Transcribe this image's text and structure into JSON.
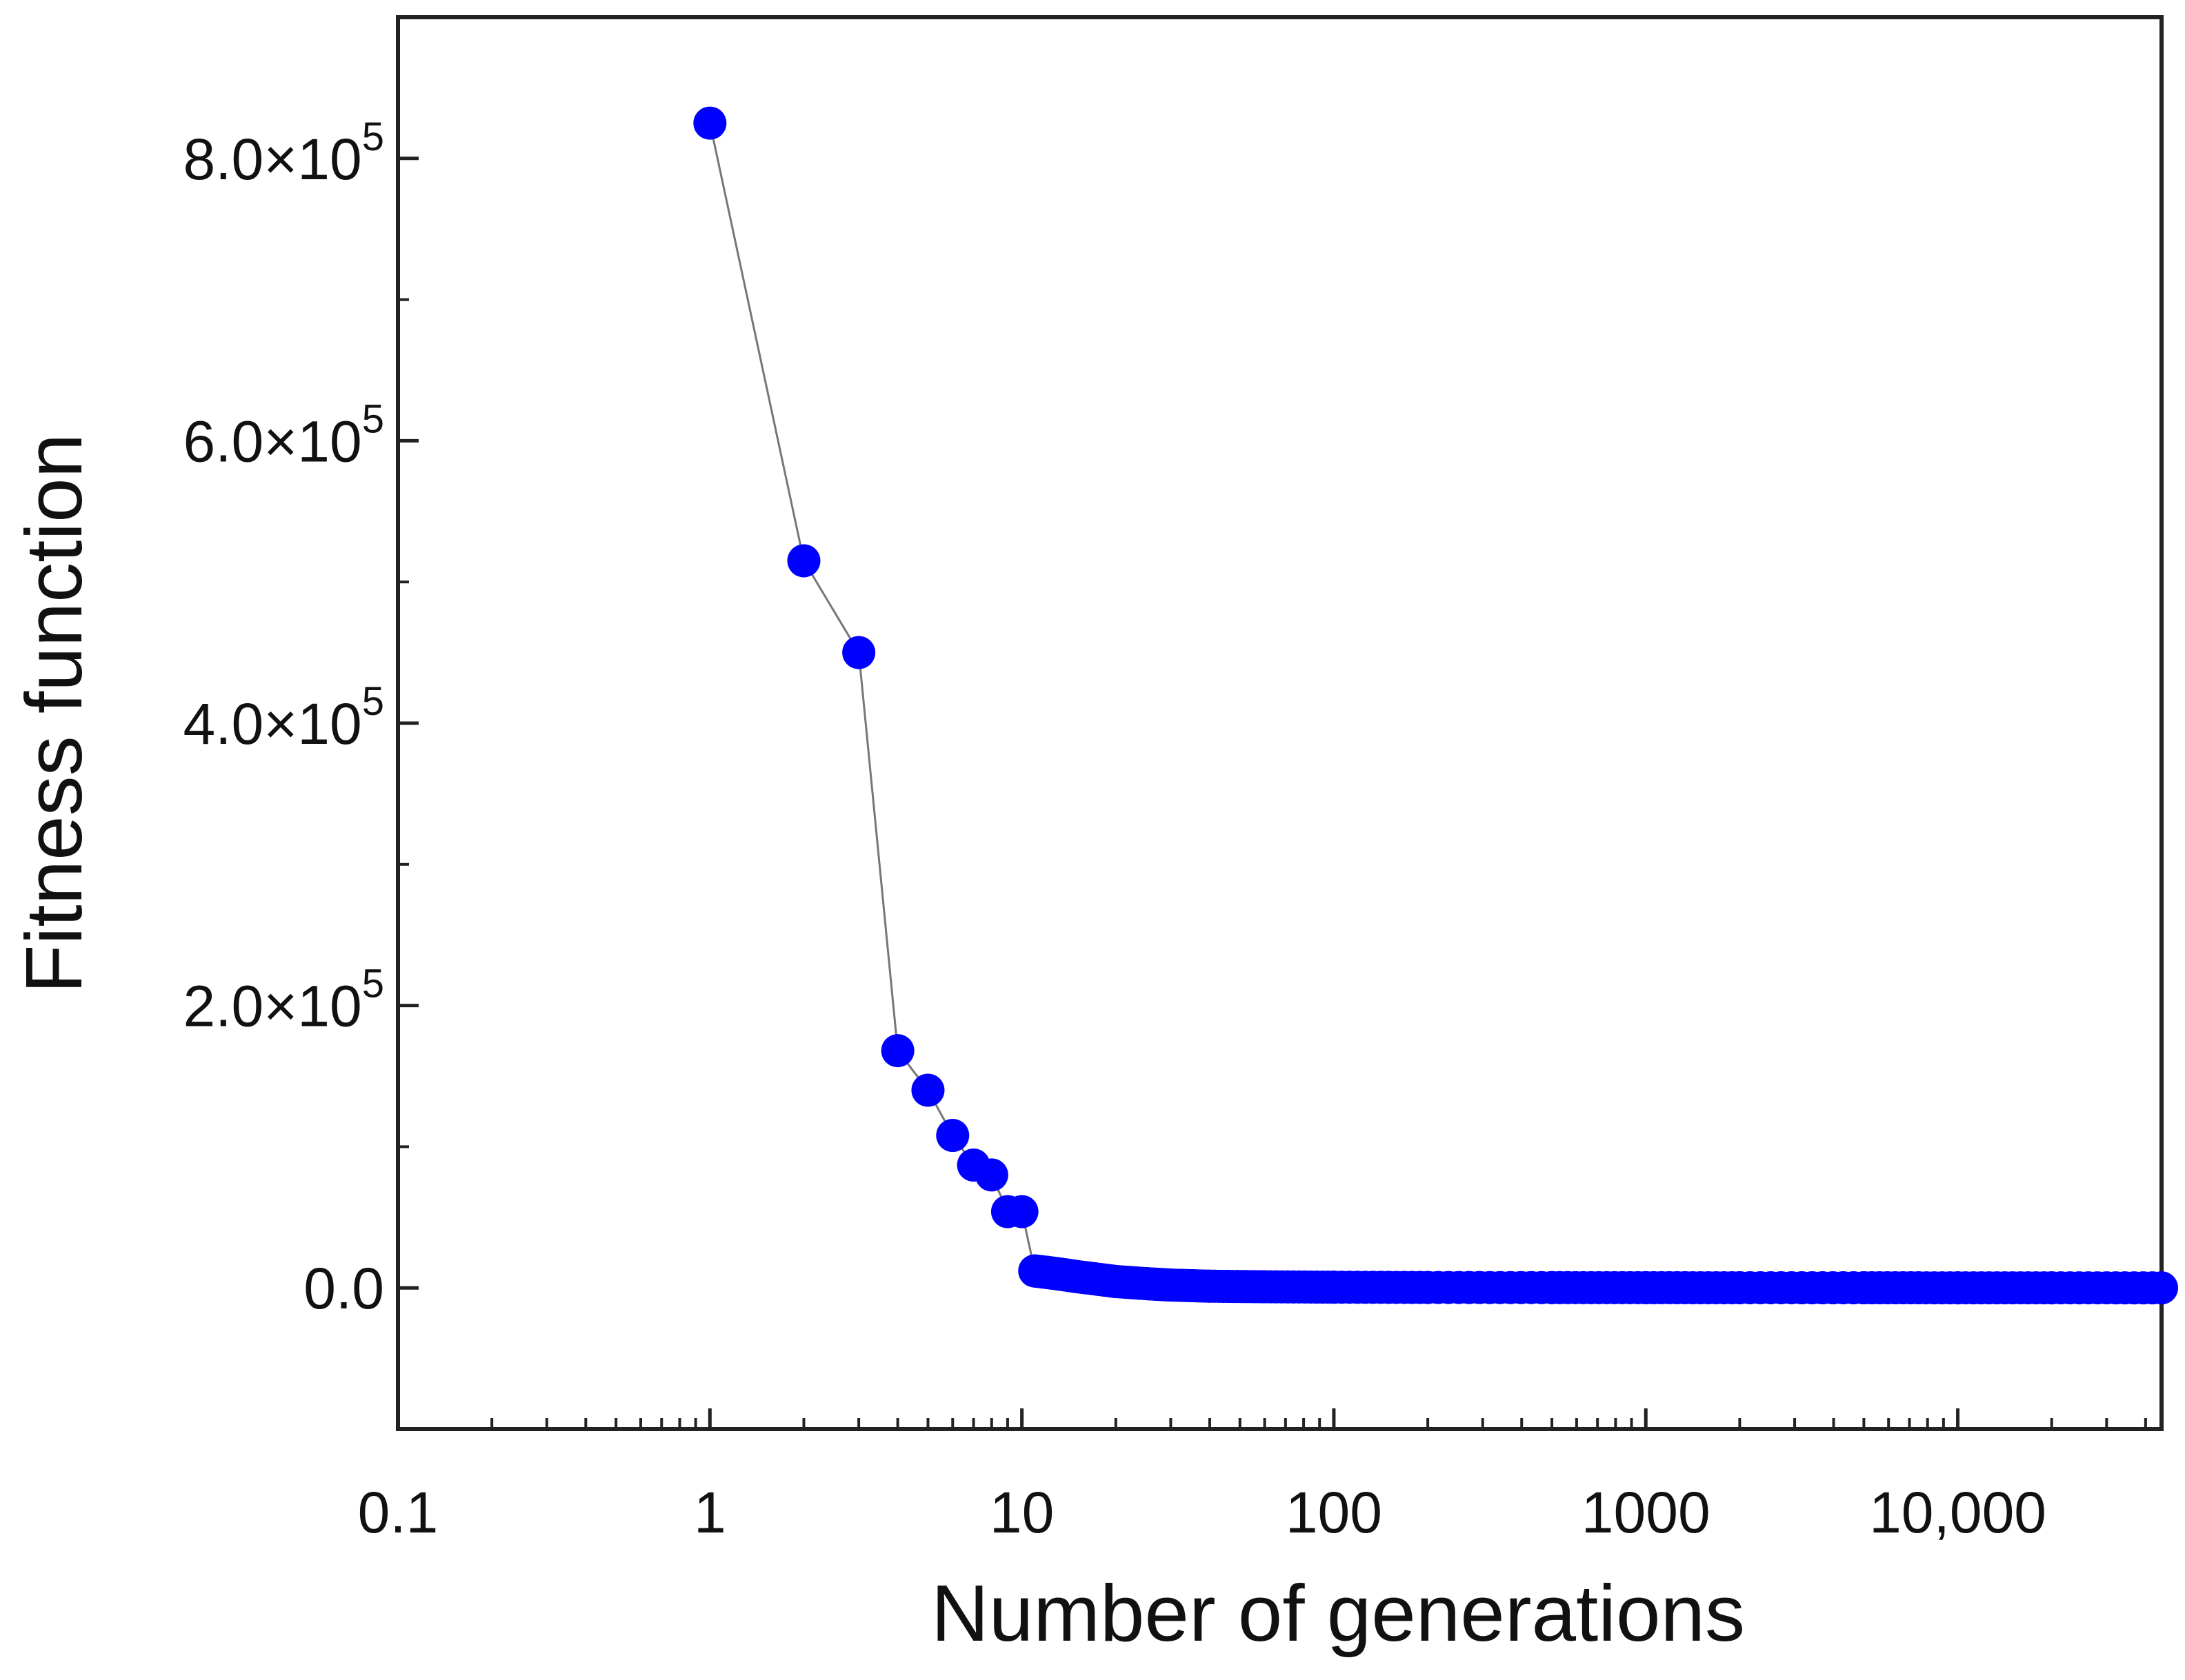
{
  "chart_data": {
    "type": "scatter",
    "title": "",
    "xlabel": "Number of generations",
    "ylabel": "Fitness function",
    "x_scale": "log",
    "xlim": [
      0.1,
      45000
    ],
    "ylim": [
      -100000,
      900000
    ],
    "grid": false,
    "colors": {
      "marker": "#0000ff",
      "line": "#777777",
      "axis": "#222222"
    },
    "x_ticks": [
      {
        "value": 0.1,
        "label": "0.1"
      },
      {
        "value": 1,
        "label": "1"
      },
      {
        "value": 10,
        "label": "10"
      },
      {
        "value": 100,
        "label": "100"
      },
      {
        "value": 1000,
        "label": "1000"
      },
      {
        "value": 10000,
        "label": "10,000"
      }
    ],
    "y_ticks": [
      {
        "value": 0,
        "mantissa": "0.0",
        "exponent": ""
      },
      {
        "value": 200000,
        "mantissa": "2.0",
        "exponent": "5"
      },
      {
        "value": 400000,
        "mantissa": "4.0",
        "exponent": "5"
      },
      {
        "value": 600000,
        "mantissa": "6.0",
        "exponent": "5"
      },
      {
        "value": 800000,
        "mantissa": "8.0",
        "exponent": "5"
      }
    ],
    "y_minor_ticks": [
      100000,
      300000,
      500000,
      700000
    ],
    "series": [
      {
        "name": "Fitness",
        "x": [
          1,
          2,
          3,
          4,
          5,
          6,
          7,
          8,
          9,
          10,
          11,
          12,
          13,
          14,
          15,
          17,
          20,
          25,
          30,
          40,
          60,
          100,
          200,
          500,
          1000,
          2000,
          5000,
          10000,
          20000,
          45000
        ],
        "y": [
          825000,
          515000,
          450000,
          168000,
          140000,
          108000,
          87000,
          80000,
          54000,
          54000,
          12000,
          11000,
          10000,
          9000,
          8000,
          6500,
          4500,
          3000,
          2000,
          1200,
          800,
          500,
          300,
          200,
          150,
          100,
          80,
          60,
          40,
          20
        ]
      }
    ]
  }
}
